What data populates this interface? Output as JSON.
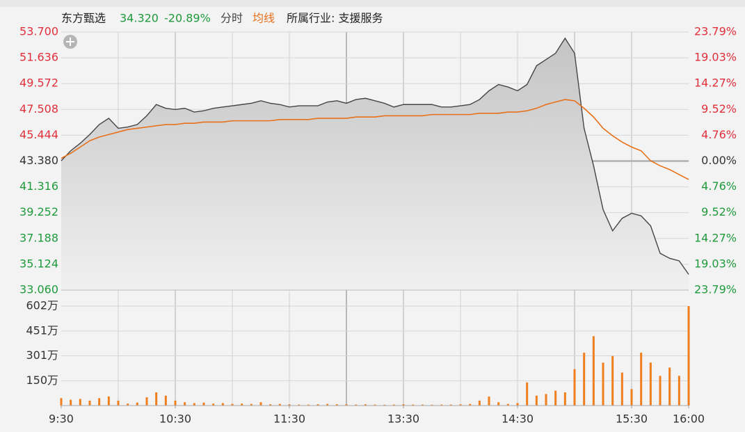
{
  "chart_data": [
    {
      "type": "line",
      "title": "东方甄选",
      "price_label": {
        "value": 34.32,
        "label": "34.320"
      },
      "change_label": {
        "value": -20.89,
        "label": "-20.89%"
      },
      "industry": "所属行业: 支援服务",
      "x": [
        "9:30",
        "9:35",
        "9:40",
        "9:45",
        "9:50",
        "9:55",
        "10:00",
        "10:05",
        "10:10",
        "10:15",
        "10:20",
        "10:25",
        "10:30",
        "10:35",
        "10:40",
        "10:45",
        "10:50",
        "10:55",
        "11:00",
        "11:05",
        "11:10",
        "11:15",
        "11:20",
        "11:25",
        "11:30",
        "11:35",
        "11:40",
        "11:45",
        "11:50",
        "11:55",
        "12:00",
        "13:05",
        "13:10",
        "13:15",
        "13:20",
        "13:25",
        "13:30",
        "13:35",
        "13:40",
        "13:45",
        "13:50",
        "13:55",
        "14:00",
        "14:05",
        "14:10",
        "14:15",
        "14:20",
        "14:25",
        "14:30",
        "14:35",
        "14:40",
        "14:45",
        "14:50",
        "14:55",
        "15:00",
        "15:05",
        "15:10",
        "15:15",
        "15:20",
        "15:25",
        "15:30",
        "15:35",
        "15:40",
        "15:45",
        "15:50",
        "15:55",
        "16:00"
      ],
      "series": [
        {
          "name": "分时",
          "color": "#444444",
          "values": [
            43.4,
            44.2,
            44.8,
            45.5,
            46.3,
            46.8,
            46.0,
            46.1,
            46.3,
            47.0,
            47.9,
            47.6,
            47.5,
            47.6,
            47.3,
            47.4,
            47.6,
            47.7,
            47.8,
            47.9,
            48.0,
            48.2,
            48.0,
            47.9,
            47.7,
            47.8,
            47.8,
            47.8,
            48.1,
            48.2,
            48.0,
            48.3,
            48.4,
            48.2,
            48.0,
            47.7,
            47.9,
            47.9,
            47.9,
            47.9,
            47.7,
            47.7,
            47.8,
            47.9,
            48.3,
            49.0,
            49.5,
            49.3,
            49.0,
            49.5,
            51.0,
            51.5,
            52.0,
            53.2,
            52.0,
            46.0,
            43.0,
            39.5,
            37.8,
            38.8,
            39.2,
            39.0,
            38.2,
            36.0,
            35.6,
            35.4,
            34.32
          ]
        },
        {
          "name": "均线",
          "color": "#e8701a",
          "values": [
            43.6,
            44.0,
            44.5,
            45.0,
            45.3,
            45.5,
            45.7,
            45.9,
            46.0,
            46.1,
            46.2,
            46.3,
            46.3,
            46.4,
            46.4,
            46.5,
            46.5,
            46.5,
            46.6,
            46.6,
            46.6,
            46.6,
            46.6,
            46.7,
            46.7,
            46.7,
            46.7,
            46.8,
            46.8,
            46.8,
            46.8,
            46.9,
            46.9,
            46.9,
            47.0,
            47.0,
            47.0,
            47.0,
            47.0,
            47.1,
            47.1,
            47.1,
            47.1,
            47.1,
            47.2,
            47.2,
            47.2,
            47.3,
            47.3,
            47.4,
            47.6,
            47.9,
            48.1,
            48.3,
            48.2,
            47.6,
            46.9,
            46.0,
            45.4,
            44.9,
            44.5,
            44.2,
            43.4,
            43.0,
            42.7,
            42.3,
            41.9
          ]
        }
      ],
      "ylim": [
        33.06,
        53.7
      ],
      "yticks": [
        {
          "value": 53.7,
          "label": "53.700"
        },
        {
          "value": 51.636,
          "label": "51.636"
        },
        {
          "value": 49.572,
          "label": "49.572"
        },
        {
          "value": 47.508,
          "label": "47.508"
        },
        {
          "value": 45.444,
          "label": "45.444"
        },
        {
          "value": 43.38,
          "label": "43.380"
        },
        {
          "value": 41.316,
          "label": "41.316"
        },
        {
          "value": 39.252,
          "label": "39.252"
        },
        {
          "value": 37.188,
          "label": "37.188"
        },
        {
          "value": 35.124,
          "label": "35.124"
        },
        {
          "value": 33.06,
          "label": "33.060"
        }
      ],
      "y2lim": [
        -23.79,
        23.79
      ],
      "y2ticks": [
        {
          "value": 23.79,
          "label": "23.79%"
        },
        {
          "value": 19.03,
          "label": "19.03%"
        },
        {
          "value": 14.27,
          "label": "14.27%"
        },
        {
          "value": 9.52,
          "label": "9.52%"
        },
        {
          "value": 4.76,
          "label": "4.76%"
        },
        {
          "value": 0,
          "label": "0.00%"
        },
        {
          "value": -4.76,
          "label": "4.76%"
        },
        {
          "value": -9.52,
          "label": "9.52%"
        },
        {
          "value": -14.27,
          "label": "14.27%"
        },
        {
          "value": -19.03,
          "label": "19.03%"
        },
        {
          "value": -23.79,
          "label": "23.79%"
        }
      ],
      "xticks": [
        "9:30",
        "10:30",
        "11:30",
        "13:30",
        "14:30",
        "15:30",
        "16:00"
      ],
      "grid": true
    },
    {
      "type": "bar",
      "color": "#f07e1e",
      "x": [
        "9:30",
        "9:35",
        "9:40",
        "9:45",
        "9:50",
        "9:55",
        "10:00",
        "10:05",
        "10:10",
        "10:15",
        "10:20",
        "10:25",
        "10:30",
        "10:35",
        "10:40",
        "10:45",
        "10:50",
        "10:55",
        "11:00",
        "11:05",
        "11:10",
        "11:15",
        "11:20",
        "11:25",
        "11:30",
        "11:35",
        "11:40",
        "11:45",
        "11:50",
        "11:55",
        "12:00",
        "13:05",
        "13:10",
        "13:15",
        "13:20",
        "13:25",
        "13:30",
        "13:35",
        "13:40",
        "13:45",
        "13:50",
        "13:55",
        "14:00",
        "14:05",
        "14:10",
        "14:15",
        "14:20",
        "14:25",
        "14:30",
        "14:35",
        "14:40",
        "14:45",
        "14:50",
        "14:55",
        "15:00",
        "15:05",
        "15:10",
        "15:15",
        "15:20",
        "15:25",
        "15:30",
        "15:35",
        "15:40",
        "15:45",
        "15:50",
        "15:55",
        "16:00"
      ],
      "values": [
        45,
        35,
        40,
        30,
        45,
        55,
        30,
        12,
        18,
        50,
        80,
        60,
        30,
        20,
        15,
        18,
        12,
        15,
        10,
        12,
        10,
        20,
        8,
        10,
        8,
        6,
        6,
        8,
        10,
        8,
        8,
        6,
        8,
        6,
        5,
        6,
        8,
        6,
        6,
        5,
        6,
        6,
        8,
        10,
        30,
        55,
        20,
        10,
        15,
        140,
        60,
        70,
        90,
        80,
        220,
        320,
        420,
        260,
        300,
        200,
        100,
        320,
        260,
        180,
        230,
        180,
        602
      ],
      "ylim": [
        0,
        602
      ],
      "yticks": [
        {
          "value": 602,
          "label": "602万"
        },
        {
          "value": 451,
          "label": "451万"
        },
        {
          "value": 301,
          "label": "301万"
        },
        {
          "value": 150,
          "label": "150万"
        }
      ]
    }
  ]
}
